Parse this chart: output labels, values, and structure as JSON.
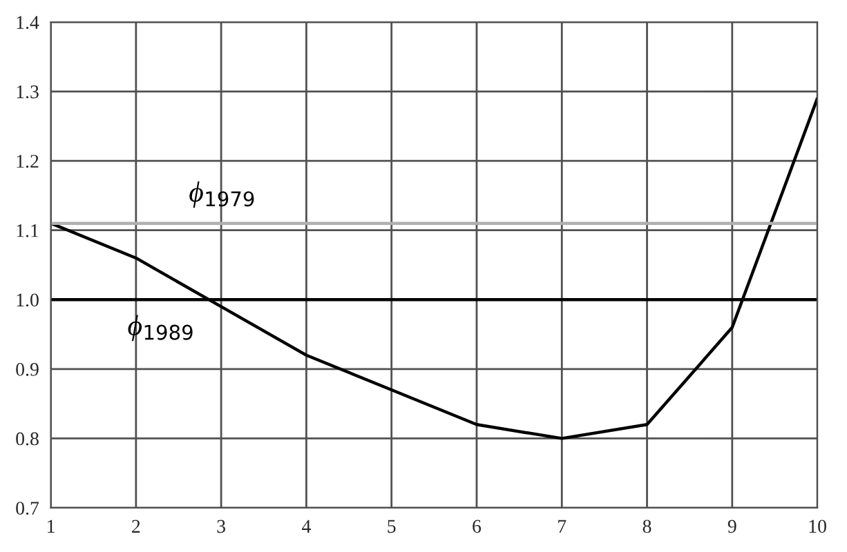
{
  "chart_data": {
    "type": "line",
    "x": [
      1,
      2,
      3,
      4,
      5,
      6,
      7,
      8,
      9,
      10
    ],
    "series": [
      {
        "color": "#000000",
        "values": [
          1.11,
          1.06,
          0.99,
          0.92,
          0.87,
          0.82,
          0.8,
          0.82,
          0.96,
          1.29
        ]
      }
    ],
    "xlim": [
      1,
      10
    ],
    "xticks": [
      1,
      2,
      3,
      4,
      5,
      6,
      7,
      8,
      9,
      10
    ],
    "ylim": [
      0.7,
      1.4
    ],
    "yticks": [
      {
        "value": 0.7,
        "label": "0.7"
      },
      {
        "value": 0.8,
        "label": "0.8"
      },
      {
        "value": 0.9,
        "label": "0.9"
      },
      {
        "value": 1.0,
        "label": "1.0"
      },
      {
        "value": 1.1,
        "label": "1.1"
      },
      {
        "value": 1.2,
        "label": "1.2"
      },
      {
        "value": 1.3,
        "label": "1.3"
      },
      {
        "value": 1.4,
        "label": "1.4"
      }
    ],
    "grid": true,
    "ref_lines": [
      {
        "axis": "y",
        "value": 1.11,
        "label": "ϕ$_{1979}$",
        "color": "#b0b0b0"
      },
      {
        "axis": "y",
        "value": 1.0,
        "label": "ϕ$_{1989}$",
        "color": "#000000"
      }
    ],
    "marker": "none",
    "line_style": "solid"
  }
}
